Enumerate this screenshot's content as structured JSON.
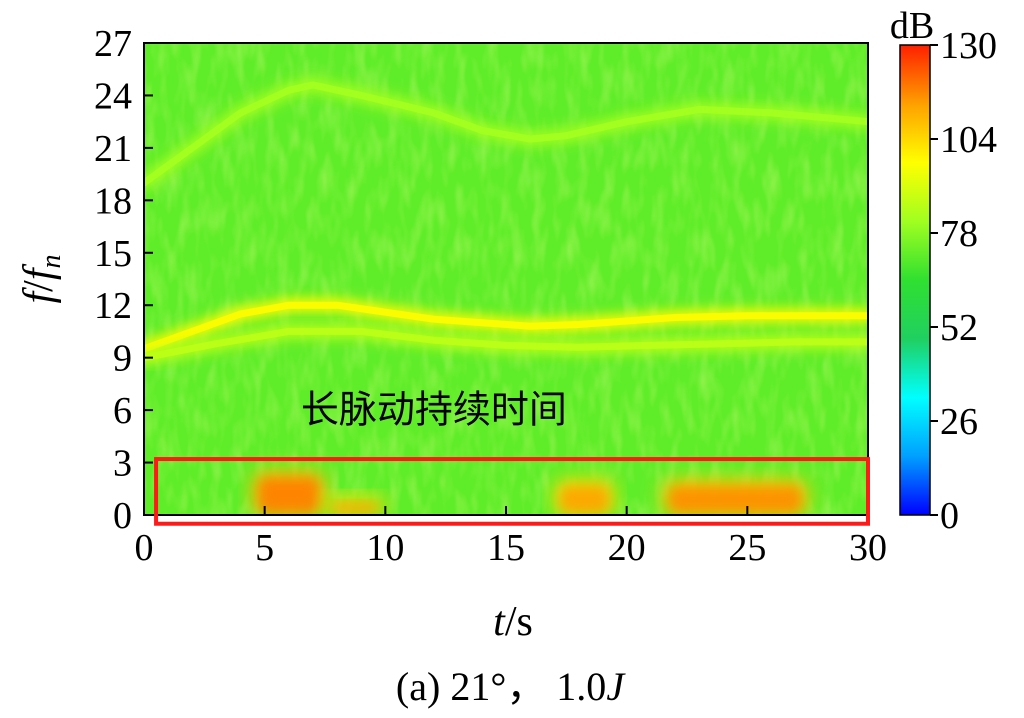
{
  "chart_data": {
    "type": "heatmap",
    "title": "",
    "caption": "(a) 21°， 1.0J",
    "caption_parts": {
      "prefix": "(a) 21°， 1.0",
      "italic": "J"
    },
    "xlabel": {
      "italic": "t",
      "rest": "/s"
    },
    "ylabel": {
      "f": "f",
      "slash": "/",
      "fn": "f",
      "sub": "n"
    },
    "xlim": [
      0,
      30
    ],
    "ylim": [
      0,
      27
    ],
    "x_ticks": [
      "0",
      "5",
      "10",
      "15",
      "20",
      "25",
      "30"
    ],
    "y_ticks": [
      "0",
      "3",
      "6",
      "9",
      "12",
      "15",
      "18",
      "21",
      "24",
      "27"
    ],
    "colorbar": {
      "label": "dB",
      "range": [
        0,
        130
      ],
      "ticks": [
        "0",
        "26",
        "52",
        "78",
        "104",
        "130"
      ],
      "colormap": [
        "#0000ff",
        "#00a0ff",
        "#00ffff",
        "#20d060",
        "#30e030",
        "#a0ff20",
        "#ffff00",
        "#ffa000",
        "#ff2000"
      ]
    },
    "grid": false,
    "background_level_db": 72,
    "ridges": [
      {
        "name": "dominant",
        "level_db": 98,
        "points": [
          [
            0,
            9.5
          ],
          [
            2,
            10.5
          ],
          [
            4,
            11.5
          ],
          [
            6,
            12.0
          ],
          [
            8,
            12.0
          ],
          [
            10,
            11.6
          ],
          [
            12,
            11.2
          ],
          [
            14,
            11.0
          ],
          [
            16,
            10.8
          ],
          [
            18,
            10.9
          ],
          [
            20,
            11.1
          ],
          [
            22,
            11.3
          ],
          [
            25,
            11.4
          ],
          [
            28,
            11.4
          ],
          [
            30,
            11.4
          ]
        ]
      },
      {
        "name": "secondary",
        "level_db": 86,
        "points": [
          [
            0,
            9.0
          ],
          [
            3,
            9.8
          ],
          [
            6,
            10.5
          ],
          [
            9,
            10.5
          ],
          [
            12,
            10.0
          ],
          [
            15,
            9.7
          ],
          [
            18,
            9.6
          ],
          [
            21,
            9.7
          ],
          [
            24,
            9.8
          ],
          [
            27,
            9.9
          ],
          [
            30,
            9.9
          ]
        ]
      },
      {
        "name": "upper",
        "level_db": 82,
        "points": [
          [
            0,
            19.0
          ],
          [
            2,
            21.0
          ],
          [
            4,
            23.0
          ],
          [
            6,
            24.3
          ],
          [
            7,
            24.6
          ],
          [
            9,
            24.0
          ],
          [
            12,
            23.0
          ],
          [
            14,
            22.0
          ],
          [
            16,
            21.5
          ],
          [
            17.5,
            21.7
          ],
          [
            20,
            22.5
          ],
          [
            23,
            23.2
          ],
          [
            26,
            23.0
          ],
          [
            30,
            22.5
          ]
        ]
      }
    ],
    "intense_regions": [
      {
        "x": [
          4.5,
          7.5
        ],
        "y": [
          0,
          2.5
        ],
        "level_db": 120
      },
      {
        "x": [
          7.5,
          10.0
        ],
        "y": [
          0,
          1.0
        ],
        "level_db": 115
      },
      {
        "x": [
          17.0,
          19.5
        ],
        "y": [
          0,
          2.0
        ],
        "level_db": 115
      },
      {
        "x": [
          21.5,
          27.5
        ],
        "y": [
          0,
          2.0
        ],
        "level_db": 118
      }
    ],
    "annotations": [
      {
        "text": "长脉动持续时间",
        "x": 6.5,
        "y": 5.3
      }
    ],
    "highlight_box": {
      "x": [
        0.5,
        30.0
      ],
      "y": [
        -0.5,
        3.2
      ],
      "color": "#ff1a1a"
    }
  }
}
